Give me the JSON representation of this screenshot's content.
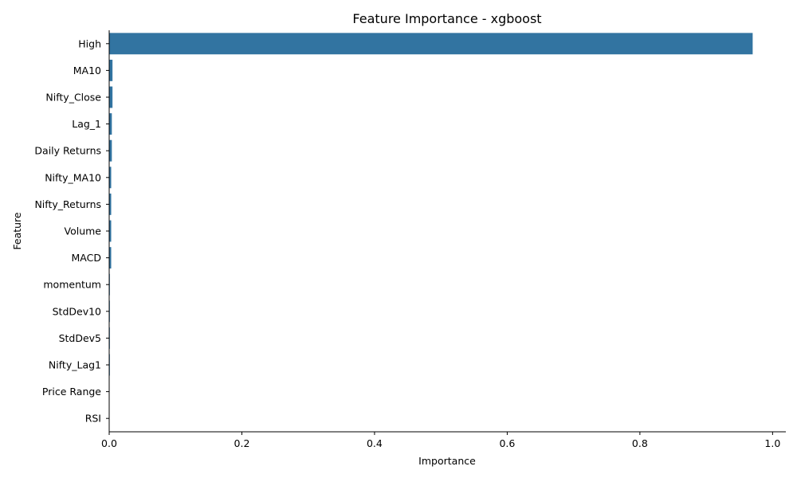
{
  "chart_data": {
    "type": "bar",
    "orientation": "horizontal",
    "title": "Feature Importance - xgboost",
    "xlabel": "Importance",
    "ylabel": "Feature",
    "xlim": [
      0,
      1.02
    ],
    "xticks": [
      0.0,
      0.2,
      0.4,
      0.6,
      0.8,
      1.0
    ],
    "xtick_labels": [
      "0.0",
      "0.2",
      "0.4",
      "0.6",
      "0.8",
      "1.0"
    ],
    "grid": false,
    "legend": "none",
    "categories": [
      "High",
      "MA10",
      "Nifty_Close",
      "Lag_1",
      "Daily Returns",
      "Nifty_MA10",
      "Nifty_Returns",
      "Volume",
      "MACD",
      "momentum",
      "StdDev10",
      "StdDev5",
      "Nifty_Lag1",
      "Price Range",
      "RSI"
    ],
    "values": [
      0.97,
      0.005,
      0.005,
      0.004,
      0.004,
      0.003,
      0.003,
      0.003,
      0.003,
      0.001,
      0.001,
      0.001,
      0.001,
      0.0005,
      0.0005
    ],
    "bar_color": "#3274a1"
  }
}
